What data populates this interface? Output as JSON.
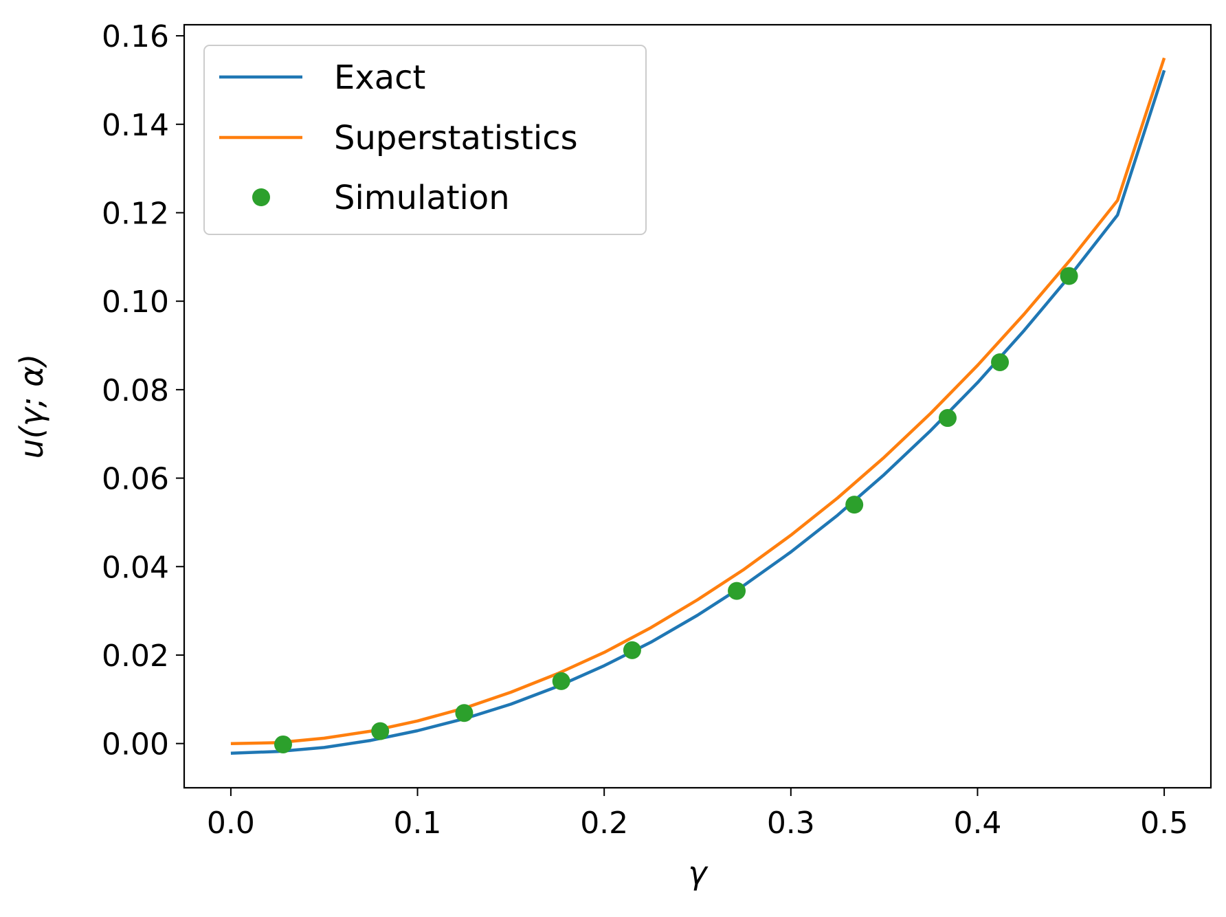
{
  "chart_data": {
    "type": "line",
    "xlabel": "γ",
    "ylabel": "u(γ; α)",
    "xlim": [
      -0.025,
      0.525
    ],
    "ylim": [
      -0.01,
      0.1625
    ],
    "xticks": [
      0.0,
      0.1,
      0.2,
      0.3,
      0.4,
      0.5
    ],
    "xtick_labels": [
      "0.0",
      "0.1",
      "0.2",
      "0.3",
      "0.4",
      "0.5"
    ],
    "yticks": [
      0.0,
      0.02,
      0.04,
      0.06,
      0.08,
      0.1,
      0.12,
      0.14,
      0.16
    ],
    "ytick_labels": [
      "0.00",
      "0.02",
      "0.04",
      "0.06",
      "0.08",
      "0.10",
      "0.12",
      "0.14",
      "0.16"
    ],
    "grid": false,
    "legend_position": "top-left",
    "series": [
      {
        "name": "Exact",
        "kind": "line",
        "color": "#1f77b4",
        "x": [
          0.0,
          0.025,
          0.05,
          0.075,
          0.1,
          0.125,
          0.15,
          0.175,
          0.2,
          0.225,
          0.25,
          0.275,
          0.3,
          0.325,
          0.35,
          0.375,
          0.4,
          0.425,
          0.45,
          0.475,
          0.5
        ],
        "y": [
          -0.0022,
          -0.0018,
          -0.0009,
          0.0007,
          0.0029,
          0.0056,
          0.0089,
          0.0129,
          0.0176,
          0.0229,
          0.029,
          0.0358,
          0.0433,
          0.0516,
          0.0608,
          0.0708,
          0.0816,
          0.0934,
          0.106,
          0.1195,
          0.1522
        ]
      },
      {
        "name": "Superstatistics",
        "kind": "line",
        "color": "#ff7f0e",
        "x": [
          0.0,
          0.025,
          0.05,
          0.075,
          0.1,
          0.125,
          0.15,
          0.175,
          0.2,
          0.225,
          0.25,
          0.275,
          0.3,
          0.325,
          0.35,
          0.375,
          0.4,
          0.425,
          0.45,
          0.475,
          0.5
        ],
        "y": [
          0.0,
          0.0002,
          0.0012,
          0.0028,
          0.0051,
          0.008,
          0.0116,
          0.0158,
          0.0206,
          0.0262,
          0.0325,
          0.0394,
          0.0471,
          0.0555,
          0.0647,
          0.0747,
          0.0855,
          0.0971,
          0.1095,
          0.1228,
          0.155
        ]
      },
      {
        "name": "Simulation",
        "kind": "scatter",
        "color": "#2ca02c",
        "x": [
          0.028,
          0.08,
          0.125,
          0.177,
          0.215,
          0.271,
          0.334,
          0.384,
          0.412,
          0.449
        ],
        "y": [
          -0.0002,
          0.0028,
          0.0069,
          0.0141,
          0.0211,
          0.0345,
          0.054,
          0.0736,
          0.0862,
          0.1057
        ]
      }
    ]
  }
}
